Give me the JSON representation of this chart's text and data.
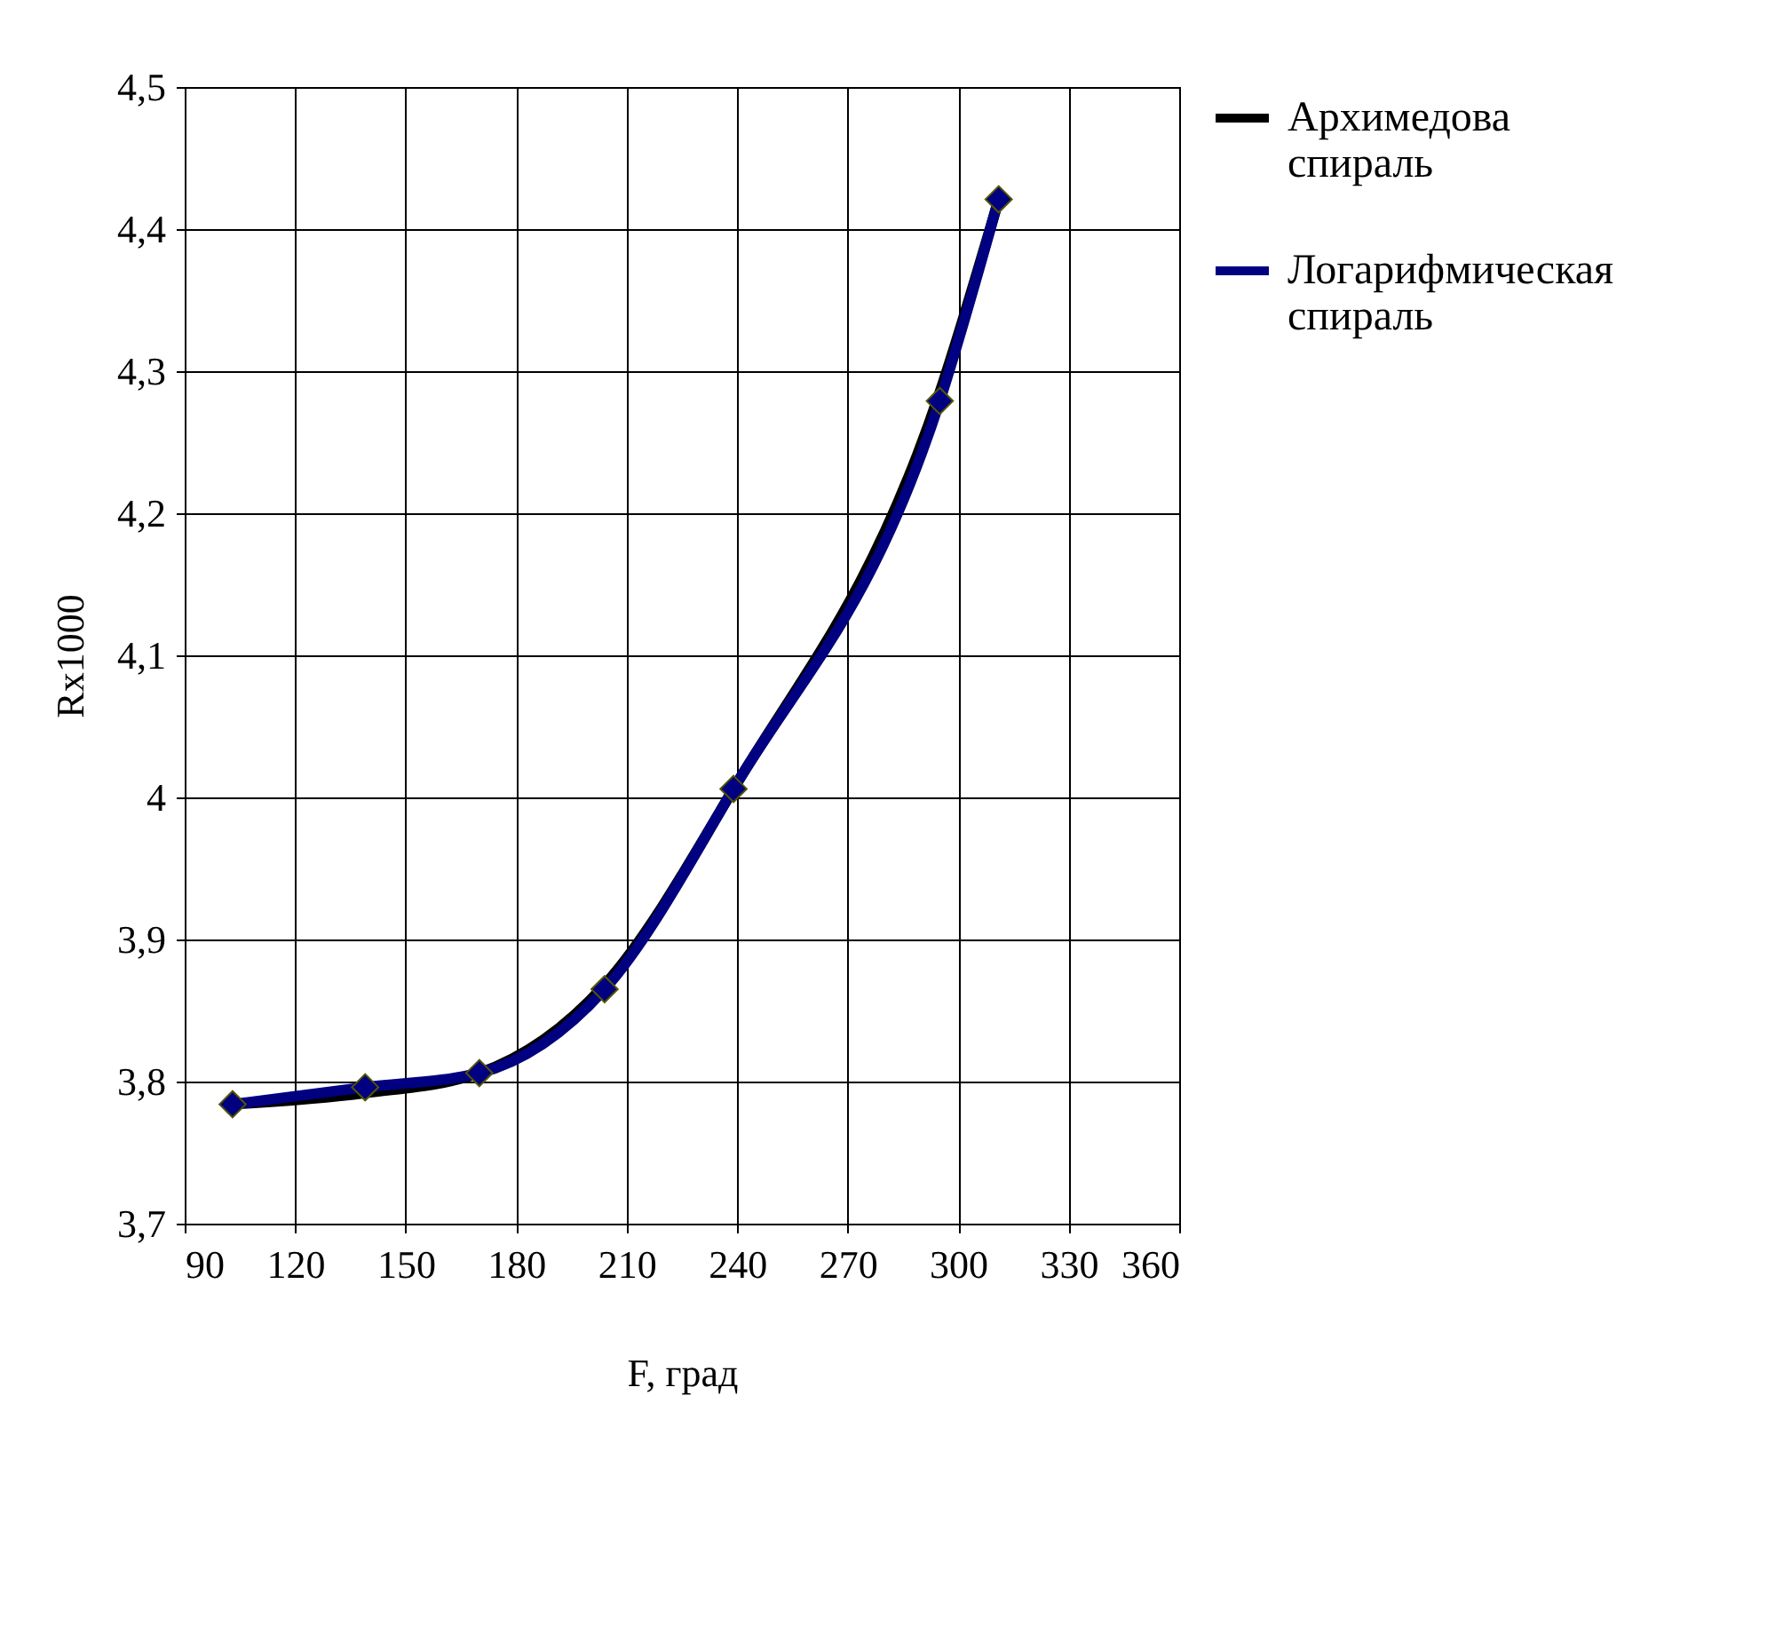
{
  "chart_data": {
    "type": "line",
    "xlabel": "F, град",
    "ylabel": "Rx1000",
    "x": [
      103,
      139,
      170,
      204,
      239,
      295,
      311
    ],
    "series": [
      {
        "name": "Архимедова спираль",
        "color": "#000000",
        "values": [
          3.784,
          3.792,
          3.806,
          3.868,
          4.006,
          4.285,
          4.421
        ]
      },
      {
        "name": "Логарифмическая спираль",
        "color": "#000080",
        "marker": "diamond",
        "values": [
          3.784,
          3.796,
          3.806,
          3.865,
          4.006,
          4.279,
          4.421
        ]
      }
    ],
    "xlim": [
      90,
      360
    ],
    "xticks": [
      90,
      120,
      150,
      180,
      210,
      240,
      270,
      300,
      330,
      360
    ],
    "ylim": [
      3.7,
      4.5
    ],
    "yticks": [
      {
        "value": 3.7,
        "label": "3,7"
      },
      {
        "value": 3.8,
        "label": "3,8"
      },
      {
        "value": 3.9,
        "label": "3,9"
      },
      4,
      {
        "value": 4.1,
        "label": "4,1"
      },
      {
        "value": 4.2,
        "label": "4,2"
      },
      {
        "value": 4.3,
        "label": "4,3"
      },
      {
        "value": 4.4,
        "label": "4,4"
      },
      {
        "value": 4.5,
        "label": "4,5"
      }
    ],
    "grid": true,
    "legend": "right"
  }
}
